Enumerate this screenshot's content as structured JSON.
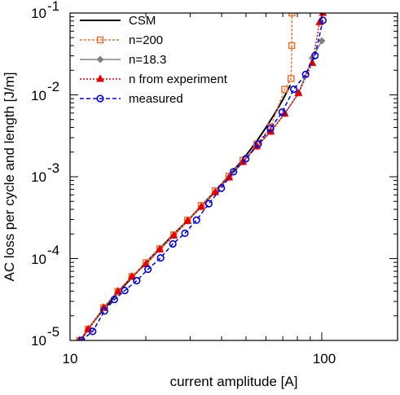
{
  "chart_data": {
    "type": "line",
    "title": "",
    "xlabel": "current amplitude [A]",
    "ylabel": "AC loss per cycle and length [J/m]",
    "xscale": "log",
    "yscale": "log",
    "xlim": [
      10,
      200
    ],
    "ylim": [
      1e-05,
      0.1
    ],
    "x_ticks": [
      {
        "value": 10,
        "label": "10"
      },
      {
        "value": 100,
        "label": "100"
      }
    ],
    "y_ticks": [
      {
        "value": 1e-05,
        "base": "10",
        "exp": "-5"
      },
      {
        "value": 0.0001,
        "base": "10",
        "exp": "-4"
      },
      {
        "value": 0.001,
        "base": "10",
        "exp": "-3"
      },
      {
        "value": 0.01,
        "base": "10",
        "exp": "-2"
      },
      {
        "value": 0.1,
        "base": "10",
        "exp": "-1"
      }
    ],
    "grid": false,
    "legend": "top-left",
    "series": [
      {
        "name": "CSM",
        "color": "#000000",
        "dash": "",
        "marker": "none",
        "x": [
          11.0,
          12.0,
          13.0,
          14.0,
          15.0,
          16.0,
          18.0,
          20.0,
          23.0,
          26.0,
          30.0,
          35.0,
          40.0,
          45.0,
          50.0,
          55.0,
          60.0,
          65.0,
          70.0,
          75.0
        ],
        "y": [
          1e-05,
          1.48e-05,
          2.04e-05,
          2.63e-05,
          3.42e-05,
          4.27e-05,
          6.31e-05,
          8.91e-05,
          0.000138,
          0.000204,
          0.000313,
          0.000521,
          0.000813,
          0.00123,
          0.00182,
          0.00269,
          0.00398,
          0.00589,
          0.00871,
          0.0132
        ]
      },
      {
        "name": "n=200",
        "color": "#f07030",
        "dash": "3,2",
        "marker": "square",
        "x": [
          10.9,
          11.8,
          13.6,
          15.5,
          17.6,
          20.0,
          22.7,
          25.8,
          29.3,
          33.2,
          37.7,
          42.8,
          48.6,
          55.2,
          62.7,
          71.2,
          75.5,
          76.0,
          76.1
        ],
        "y": [
          1e-05,
          1.37e-05,
          2.51e-05,
          3.98e-05,
          6.03e-05,
          8.91e-05,
          0.000132,
          0.000195,
          0.000295,
          0.000447,
          0.000676,
          0.00102,
          0.00159,
          0.00251,
          0.00407,
          0.0117,
          0.0158,
          0.04,
          0.1
        ]
      },
      {
        "name": "n=18.3",
        "color": "#808080",
        "dash": "",
        "marker": "diamond",
        "x": [
          10.9,
          11.8,
          13.6,
          15.5,
          17.6,
          20.0,
          22.7,
          25.8,
          29.3,
          33.2,
          37.7,
          42.8,
          48.6,
          55.2,
          62.7,
          71.2,
          80.8,
          91.7,
          100.0
        ],
        "y": [
          1e-05,
          1.37e-05,
          2.51e-05,
          3.98e-05,
          6.03e-05,
          8.51e-05,
          0.000129,
          0.000191,
          0.000288,
          0.000427,
          0.000646,
          0.000977,
          0.00151,
          0.00234,
          0.00355,
          0.00589,
          0.0105,
          0.0282,
          0.0457
        ]
      },
      {
        "name": "n from experiment",
        "color": "#e00000",
        "dash": "2,2",
        "marker": "triangle",
        "x": [
          10.9,
          11.8,
          13.6,
          15.5,
          17.6,
          20.0,
          22.7,
          25.8,
          29.3,
          33.2,
          37.7,
          42.8,
          48.6,
          55.2,
          62.7,
          71.2,
          80.8,
          91.7,
          98.0,
          101.0
        ],
        "y": [
          1e-05,
          1.37e-05,
          2.51e-05,
          3.98e-05,
          6.03e-05,
          8.51e-05,
          0.000129,
          0.000191,
          0.000288,
          0.000427,
          0.000646,
          0.000977,
          0.00151,
          0.00234,
          0.00355,
          0.00589,
          0.0105,
          0.0245,
          0.077,
          0.1
        ]
      },
      {
        "name": "measured",
        "color": "#0000e0",
        "dash": "5,3",
        "marker": "circle",
        "x": [
          11.1,
          12.3,
          13.7,
          15.0,
          16.5,
          18.4,
          20.4,
          22.9,
          25.6,
          28.6,
          31.8,
          35.6,
          39.9,
          44.6,
          49.9,
          55.9,
          62.5,
          69.6,
          77.4,
          86.3,
          94.0,
          101.0
        ],
        "y": [
          1e-05,
          1.29e-05,
          2.29e-05,
          3.16e-05,
          4.07e-05,
          5.37e-05,
          7.41e-05,
          0.000102,
          0.000151,
          0.000204,
          0.000295,
          0.000468,
          0.000724,
          0.00115,
          0.00166,
          0.00251,
          0.00389,
          0.00617,
          0.0117,
          0.0178,
          0.0302,
          0.0813
        ]
      }
    ]
  }
}
